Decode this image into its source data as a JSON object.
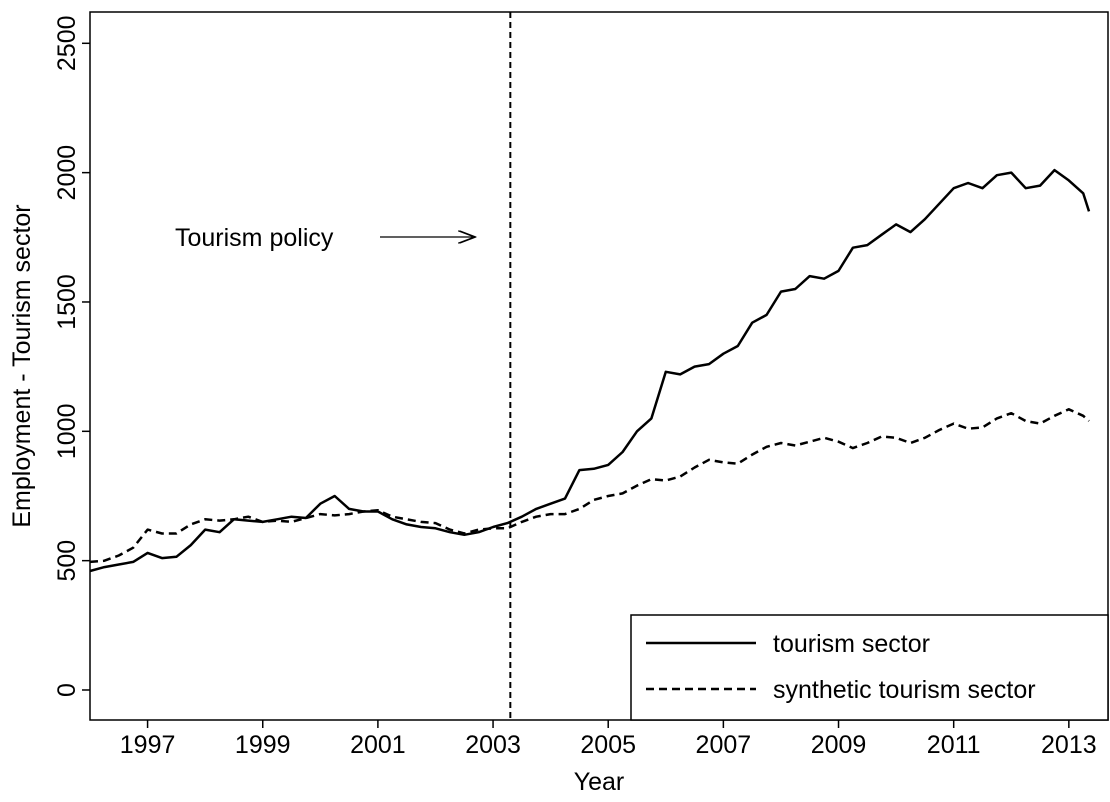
{
  "chart_data": {
    "type": "line",
    "y_label": "Employment - Tourism sector",
    "x_label": "Year",
    "annotation": "Tourism policy",
    "policy_x": 2003.3,
    "x": [
      1996.0,
      1996.25,
      1996.5,
      1996.75,
      1997.0,
      1997.25,
      1997.5,
      1997.75,
      1998.0,
      1998.25,
      1998.5,
      1998.75,
      1999.0,
      1999.25,
      1999.5,
      1999.75,
      2000.0,
      2000.25,
      2000.5,
      2000.75,
      2001.0,
      2001.25,
      2001.5,
      2001.75,
      2002.0,
      2002.25,
      2002.5,
      2002.75,
      2003.0,
      2003.25,
      2003.5,
      2003.75,
      2004.0,
      2004.25,
      2004.5,
      2004.75,
      2005.0,
      2005.25,
      2005.5,
      2005.75,
      2006.0,
      2006.25,
      2006.5,
      2006.75,
      2007.0,
      2007.25,
      2007.5,
      2007.75,
      2008.0,
      2008.25,
      2008.5,
      2008.75,
      2009.0,
      2009.25,
      2009.5,
      2009.75,
      2010.0,
      2010.25,
      2010.5,
      2010.75,
      2011.0,
      2011.25,
      2011.5,
      2011.75,
      2012.0,
      2012.25,
      2012.5,
      2012.75,
      2013.0,
      2013.25,
      2013.35
    ],
    "series": [
      {
        "name": "tourism sector",
        "color": "#000000",
        "dash": "solid",
        "values": [
          460,
          475,
          485,
          495,
          530,
          510,
          515,
          560,
          620,
          610,
          660,
          655,
          650,
          660,
          670,
          665,
          720,
          750,
          700,
          690,
          690,
          660,
          640,
          630,
          625,
          610,
          600,
          610,
          630,
          645,
          670,
          700,
          720,
          740,
          850,
          855,
          870,
          920,
          1000,
          1050,
          1230,
          1220,
          1250,
          1260,
          1300,
          1330,
          1420,
          1450,
          1540,
          1550,
          1600,
          1590,
          1620,
          1710,
          1720,
          1760,
          1800,
          1770,
          1820,
          1880,
          1940,
          1960,
          1940,
          1990,
          2000,
          1940,
          1950,
          2010,
          1970,
          1920,
          1850
        ]
      },
      {
        "name": "synthetic tourism sector",
        "color": "#000000",
        "dash": "dashed",
        "values": [
          495,
          500,
          520,
          550,
          620,
          605,
          605,
          640,
          660,
          655,
          660,
          670,
          650,
          655,
          650,
          665,
          680,
          675,
          680,
          690,
          695,
          670,
          660,
          650,
          645,
          620,
          605,
          620,
          625,
          625,
          650,
          670,
          680,
          680,
          700,
          735,
          750,
          760,
          790,
          815,
          810,
          825,
          860,
          890,
          880,
          875,
          910,
          940,
          955,
          945,
          960,
          975,
          960,
          935,
          955,
          980,
          975,
          955,
          975,
          1005,
          1030,
          1010,
          1015,
          1050,
          1070,
          1040,
          1030,
          1060,
          1085,
          1060,
          1040
        ]
      }
    ],
    "xlim": [
      1996.0,
      2013.68
    ],
    "xticks": [
      1997,
      1999,
      2001,
      2003,
      2005,
      2007,
      2009,
      2011,
      2013
    ],
    "ylim": [
      -116,
      2621
    ],
    "yticks": [
      0,
      500,
      1000,
      1500,
      2000,
      2500
    ],
    "grid": false,
    "legend": "lower right"
  }
}
